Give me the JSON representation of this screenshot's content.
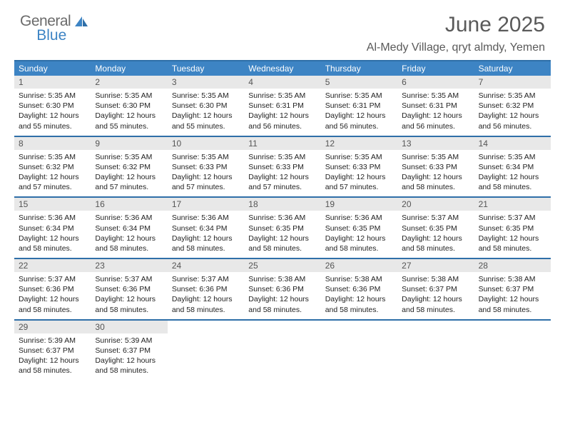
{
  "branding": {
    "logo_main": "General",
    "logo_sub": "Blue"
  },
  "header": {
    "month_title": "June 2025",
    "location": "Al-Medy Village, qryt almdy, Yemen"
  },
  "style": {
    "accent_color": "#3d84c4",
    "accent_dark": "#2f6fa8",
    "day_head_bg": "#e8e8e8",
    "text_color": "#5a5a5a",
    "body_text_color": "#222222",
    "background_color": "#ffffff",
    "weekday_fontsize": 12,
    "dayhead_fontsize": 12,
    "daybody_fontsize": 10.5,
    "title_fontsize": 30,
    "location_fontsize": 16
  },
  "weekdays": [
    "Sunday",
    "Monday",
    "Tuesday",
    "Wednesday",
    "Thursday",
    "Friday",
    "Saturday"
  ],
  "days": [
    {
      "n": 1,
      "sunrise": "5:35 AM",
      "sunset": "6:30 PM",
      "daylight": "12 hours and 55 minutes."
    },
    {
      "n": 2,
      "sunrise": "5:35 AM",
      "sunset": "6:30 PM",
      "daylight": "12 hours and 55 minutes."
    },
    {
      "n": 3,
      "sunrise": "5:35 AM",
      "sunset": "6:30 PM",
      "daylight": "12 hours and 55 minutes."
    },
    {
      "n": 4,
      "sunrise": "5:35 AM",
      "sunset": "6:31 PM",
      "daylight": "12 hours and 56 minutes."
    },
    {
      "n": 5,
      "sunrise": "5:35 AM",
      "sunset": "6:31 PM",
      "daylight": "12 hours and 56 minutes."
    },
    {
      "n": 6,
      "sunrise": "5:35 AM",
      "sunset": "6:31 PM",
      "daylight": "12 hours and 56 minutes."
    },
    {
      "n": 7,
      "sunrise": "5:35 AM",
      "sunset": "6:32 PM",
      "daylight": "12 hours and 56 minutes."
    },
    {
      "n": 8,
      "sunrise": "5:35 AM",
      "sunset": "6:32 PM",
      "daylight": "12 hours and 57 minutes."
    },
    {
      "n": 9,
      "sunrise": "5:35 AM",
      "sunset": "6:32 PM",
      "daylight": "12 hours and 57 minutes."
    },
    {
      "n": 10,
      "sunrise": "5:35 AM",
      "sunset": "6:33 PM",
      "daylight": "12 hours and 57 minutes."
    },
    {
      "n": 11,
      "sunrise": "5:35 AM",
      "sunset": "6:33 PM",
      "daylight": "12 hours and 57 minutes."
    },
    {
      "n": 12,
      "sunrise": "5:35 AM",
      "sunset": "6:33 PM",
      "daylight": "12 hours and 57 minutes."
    },
    {
      "n": 13,
      "sunrise": "5:35 AM",
      "sunset": "6:33 PM",
      "daylight": "12 hours and 58 minutes."
    },
    {
      "n": 14,
      "sunrise": "5:35 AM",
      "sunset": "6:34 PM",
      "daylight": "12 hours and 58 minutes."
    },
    {
      "n": 15,
      "sunrise": "5:36 AM",
      "sunset": "6:34 PM",
      "daylight": "12 hours and 58 minutes."
    },
    {
      "n": 16,
      "sunrise": "5:36 AM",
      "sunset": "6:34 PM",
      "daylight": "12 hours and 58 minutes."
    },
    {
      "n": 17,
      "sunrise": "5:36 AM",
      "sunset": "6:34 PM",
      "daylight": "12 hours and 58 minutes."
    },
    {
      "n": 18,
      "sunrise": "5:36 AM",
      "sunset": "6:35 PM",
      "daylight": "12 hours and 58 minutes."
    },
    {
      "n": 19,
      "sunrise": "5:36 AM",
      "sunset": "6:35 PM",
      "daylight": "12 hours and 58 minutes."
    },
    {
      "n": 20,
      "sunrise": "5:37 AM",
      "sunset": "6:35 PM",
      "daylight": "12 hours and 58 minutes."
    },
    {
      "n": 21,
      "sunrise": "5:37 AM",
      "sunset": "6:35 PM",
      "daylight": "12 hours and 58 minutes."
    },
    {
      "n": 22,
      "sunrise": "5:37 AM",
      "sunset": "6:36 PM",
      "daylight": "12 hours and 58 minutes."
    },
    {
      "n": 23,
      "sunrise": "5:37 AM",
      "sunset": "6:36 PM",
      "daylight": "12 hours and 58 minutes."
    },
    {
      "n": 24,
      "sunrise": "5:37 AM",
      "sunset": "6:36 PM",
      "daylight": "12 hours and 58 minutes."
    },
    {
      "n": 25,
      "sunrise": "5:38 AM",
      "sunset": "6:36 PM",
      "daylight": "12 hours and 58 minutes."
    },
    {
      "n": 26,
      "sunrise": "5:38 AM",
      "sunset": "6:36 PM",
      "daylight": "12 hours and 58 minutes."
    },
    {
      "n": 27,
      "sunrise": "5:38 AM",
      "sunset": "6:37 PM",
      "daylight": "12 hours and 58 minutes."
    },
    {
      "n": 28,
      "sunrise": "5:38 AM",
      "sunset": "6:37 PM",
      "daylight": "12 hours and 58 minutes."
    },
    {
      "n": 29,
      "sunrise": "5:39 AM",
      "sunset": "6:37 PM",
      "daylight": "12 hours and 58 minutes."
    },
    {
      "n": 30,
      "sunrise": "5:39 AM",
      "sunset": "6:37 PM",
      "daylight": "12 hours and 58 minutes."
    }
  ],
  "labels": {
    "sunrise_prefix": "Sunrise: ",
    "sunset_prefix": "Sunset: ",
    "daylight_prefix": "Daylight: "
  },
  "layout": {
    "columns": 7,
    "first_day_offset": 0,
    "total_days": 30
  }
}
